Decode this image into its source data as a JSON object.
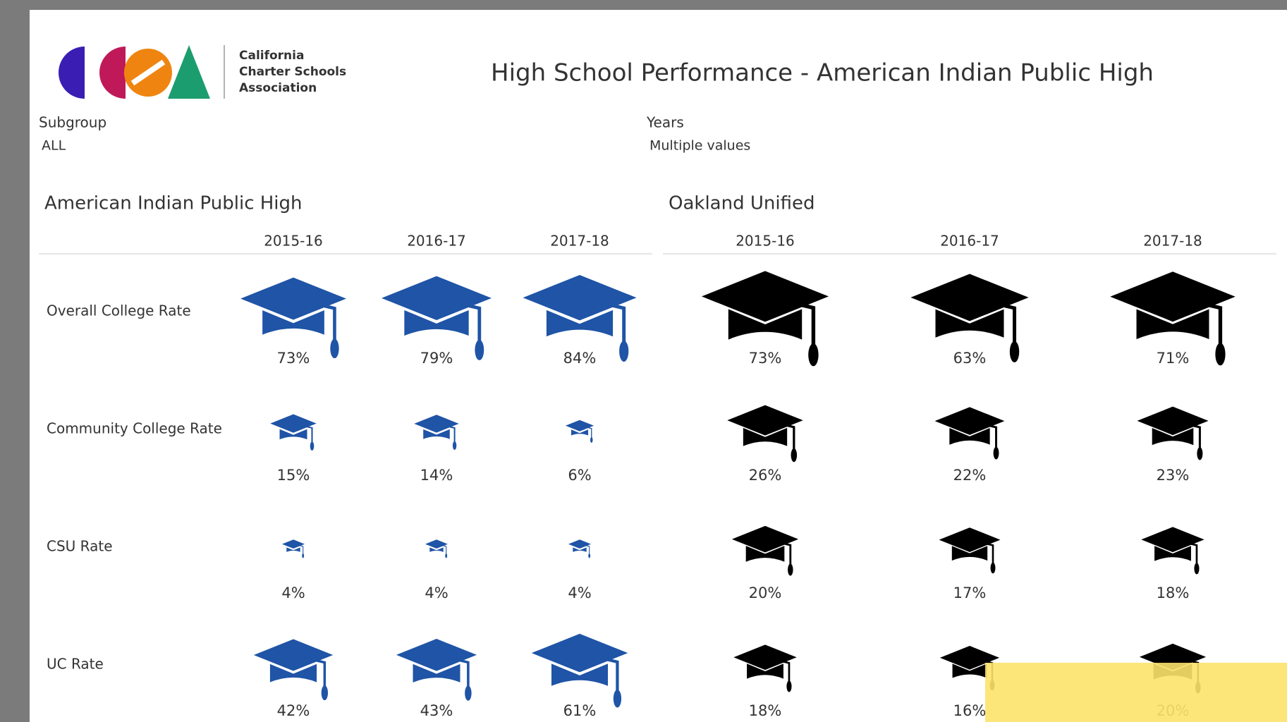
{
  "header": {
    "logo_text": [
      "California",
      "Charter Schools",
      "Association"
    ],
    "title": "High School Performance - American Indian Public High"
  },
  "filters": [
    {
      "label": "Subgroup",
      "value": "ALL"
    },
    {
      "label": "Years",
      "value": "Multiple values"
    }
  ],
  "chart_data": [
    {
      "type": "symbol",
      "title": "American Indian Public High",
      "categories": [
        "2015-16",
        "2016-17",
        "2017-18"
      ],
      "series": [
        {
          "name": "Overall College Rate",
          "color": "#1f54a6",
          "values": [
            73,
            79,
            84
          ],
          "value_labels": [
            "73%",
            "79%",
            "84%"
          ]
        },
        {
          "name": "Community College Rate",
          "color": "#1f54a6",
          "values": [
            15,
            14,
            6
          ],
          "value_labels": [
            "15%",
            "14%",
            "6%"
          ]
        },
        {
          "name": "CSU Rate",
          "color": "#1f54a6",
          "values": [
            4,
            4,
            4
          ],
          "value_labels": [
            "4%",
            "4%",
            "4%"
          ]
        },
        {
          "name": "UC Rate",
          "color": "#1f54a6",
          "values": [
            42,
            43,
            61
          ],
          "value_labels": [
            "42%",
            "43%",
            "61%"
          ]
        }
      ]
    },
    {
      "type": "symbol",
      "title": "Oakland Unified",
      "categories": [
        "2015-16",
        "2016-17",
        "2017-18"
      ],
      "series": [
        {
          "color": "#000000",
          "values": [
            73,
            63,
            71
          ],
          "value_labels": [
            "73%",
            "63%",
            "71%"
          ]
        },
        {
          "color": "#000000",
          "values": [
            26,
            22,
            23
          ],
          "value_labels": [
            "26%",
            "22%",
            "23%"
          ]
        },
        {
          "color": "#000000",
          "values": [
            20,
            17,
            18
          ],
          "value_labels": [
            "20%",
            "17%",
            "18%"
          ]
        },
        {
          "color": "#000000",
          "values": [
            18,
            16,
            20
          ],
          "value_labels": [
            "18%",
            "16%",
            "20%"
          ]
        }
      ]
    }
  ]
}
